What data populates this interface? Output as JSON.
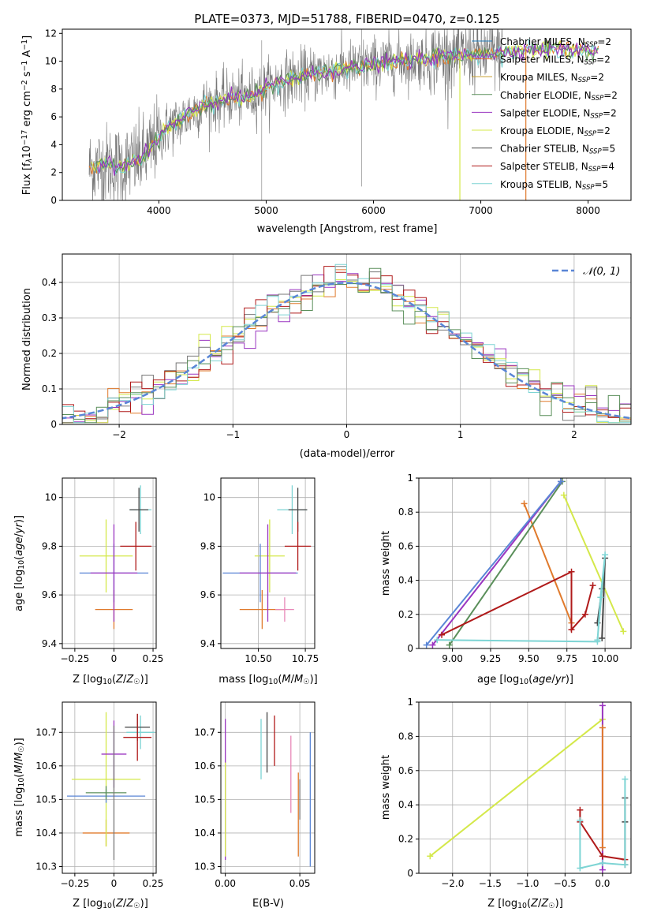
{
  "title": "PLATE=0373, MJD=51788, FIBERID=0470, z=0.125",
  "colors": {
    "orange": "#e07a2c",
    "purple": "#9a35c0",
    "yellow": "#d4e84a",
    "gray": "#777777",
    "red": "#b01a1a",
    "cyan": "#7dd4d4",
    "blue": "#5a86d6",
    "green": "#5a8f5a",
    "pink": "#e888b8"
  },
  "chart_data": [
    {
      "id": "spectrum",
      "type": "line",
      "xlabel": "wavelength [Angstrom, rest frame]",
      "ylabel": "Flux [f_λ 10^-17 erg cm^-2 s^-1 A^-1]",
      "xlim": [
        3100,
        8400
      ],
      "ylim": [
        0,
        12.3
      ],
      "xticks": [
        4000,
        5000,
        6000,
        7000,
        8000
      ],
      "yticks": [
        0,
        2,
        4,
        6,
        8,
        10,
        12
      ],
      "grid": false,
      "legend_position": "right",
      "legend": [
        {
          "label": "Chabrier MILES, N",
          "sub": "SSP",
          "tail": "=2",
          "color": "#1f77b4"
        },
        {
          "label": "Salpeter MILES, N",
          "sub": "SSP",
          "tail": "=2",
          "color": "#e07a2c"
        },
        {
          "label": "Kroupa MILES, N",
          "sub": "SSP",
          "tail": "=2",
          "color": "#c8a030"
        },
        {
          "label": "Chabrier ELODIE, N",
          "sub": "SSP",
          "tail": "=2",
          "color": "#5a8f5a"
        },
        {
          "label": "Salpeter ELODIE, N",
          "sub": "SSP",
          "tail": "=2",
          "color": "#9a35c0"
        },
        {
          "label": "Kroupa ELODIE, N",
          "sub": "SSP",
          "tail": "=2",
          "color": "#d4e84a"
        },
        {
          "label": "Chabrier STELIB, N",
          "sub": "SSP",
          "tail": "=5",
          "color": "#444444"
        },
        {
          "label": "Salpeter STELIB, N",
          "sub": "SSP",
          "tail": "=4",
          "color": "#b01a1a"
        },
        {
          "label": "Kroupa STELIB, N",
          "sub": "SSP",
          "tail": "=5",
          "color": "#7dd4d4"
        }
      ],
      "model_curve": {
        "x": [
          3350,
          3500,
          3650,
          3800,
          3900,
          4000,
          4100,
          4200,
          4300,
          4400,
          4500,
          4600,
          4700,
          4800,
          4900,
          5000,
          5200,
          5400,
          5600,
          5800,
          6000,
          6200,
          6400,
          6600,
          6800,
          7000,
          7200,
          7400,
          7600,
          7800,
          8000,
          8100
        ],
        "y": [
          2.3,
          2.6,
          2.4,
          2.9,
          3.4,
          4.6,
          5.3,
          5.7,
          6.3,
          6.8,
          7.0,
          7.2,
          7.4,
          7.4,
          7.6,
          8.1,
          8.7,
          9.0,
          9.3,
          9.5,
          9.8,
          10.0,
          10.1,
          10.3,
          10.4,
          10.5,
          10.6,
          10.9,
          10.8,
          10.9,
          10.7,
          10.8
        ]
      }
    },
    {
      "id": "residuals",
      "type": "step",
      "xlabel": "(data-model)/error",
      "ylabel": "Normed distribution",
      "xlim": [
        -2.5,
        2.5
      ],
      "ylim": [
        0,
        0.48
      ],
      "xticks": [
        -2,
        -1,
        0,
        1,
        2
      ],
      "yticks": [
        0.0,
        0.1,
        0.2,
        0.3,
        0.4
      ],
      "grid": true,
      "legend_label": "𝒩(0, 1)",
      "legend_position": "top-right",
      "bin_width": 0.1
    },
    {
      "id": "age_vs_Z",
      "type": "errorbar",
      "xlabel": "Z [log10(Z/Z☉)]",
      "ylabel": "age  [log10(age/yr)]",
      "xlim": [
        -0.33,
        0.27
      ],
      "ylim": [
        9.38,
        10.08
      ],
      "xticks": [
        -0.25,
        0.0,
        0.25
      ],
      "yticks": [
        9.4,
        9.6,
        9.8,
        10.0
      ],
      "grid": true,
      "points": [
        {
          "x": 0.0,
          "xerr": 0.12,
          "y": 9.54,
          "yerr": 0.08,
          "color": "#e07a2c"
        },
        {
          "x": -0.05,
          "xerr": 0.17,
          "y": 9.76,
          "yerr": 0.15,
          "color": "#d4e84a"
        },
        {
          "x": 0.0,
          "xerr": 0.22,
          "y": 9.69,
          "yerr": 0.12,
          "color": "#5a86d6"
        },
        {
          "x": 0.0,
          "xerr": 0.15,
          "y": 9.69,
          "yerr": 0.2,
          "color": "#9a35c0"
        },
        {
          "x": 0.17,
          "xerr": 0.07,
          "y": 9.95,
          "yerr": 0.1,
          "color": "#7dd4d4"
        },
        {
          "x": 0.16,
          "xerr": 0.06,
          "y": 9.95,
          "yerr": 0.09,
          "color": "#444444"
        },
        {
          "x": 0.14,
          "xerr": 0.1,
          "y": 9.8,
          "yerr": 0.1,
          "color": "#b01a1a"
        }
      ]
    },
    {
      "id": "age_vs_mass",
      "type": "errorbar",
      "xlabel": "mass [log10(M/M☉)]",
      "xlim": [
        10.3,
        10.8
      ],
      "ylim": [
        9.38,
        10.08
      ],
      "xticks": [
        10.5,
        10.75
      ],
      "xtick_labels": [
        "10.50",
        "10.75"
      ],
      "yticks": [
        9.4,
        9.6,
        9.8,
        10.0
      ],
      "grid": true,
      "points": [
        {
          "x": 10.52,
          "xerr": 0.12,
          "y": 9.54,
          "yerr": 0.08,
          "color": "#e07a2c"
        },
        {
          "x": 10.56,
          "xerr": 0.08,
          "y": 9.76,
          "yerr": 0.15,
          "color": "#d4e84a"
        },
        {
          "x": 10.51,
          "xerr": 0.2,
          "y": 9.69,
          "yerr": 0.12,
          "color": "#5a86d6"
        },
        {
          "x": 10.55,
          "xerr": 0.15,
          "y": 9.69,
          "yerr": 0.2,
          "color": "#9a35c0"
        },
        {
          "x": 10.68,
          "xerr": 0.08,
          "y": 9.95,
          "yerr": 0.1,
          "color": "#7dd4d4"
        },
        {
          "x": 10.71,
          "xerr": 0.05,
          "y": 9.95,
          "yerr": 0.09,
          "color": "#444444"
        },
        {
          "x": 10.71,
          "xerr": 0.07,
          "y": 9.8,
          "yerr": 0.1,
          "color": "#b01a1a"
        },
        {
          "x": 10.64,
          "xerr": 0.05,
          "y": 9.54,
          "yerr": 0.05,
          "color": "#e888b8"
        }
      ]
    },
    {
      "id": "weight_vs_age",
      "type": "line",
      "xlabel": "age  [log10(age/yr)]",
      "ylabel": "mass weight",
      "xlim": [
        8.78,
        10.17
      ],
      "ylim": [
        0,
        1.0
      ],
      "xticks": [
        9.0,
        9.25,
        9.5,
        9.75,
        10.0
      ],
      "xtick_labels": [
        "9.00",
        "9.25",
        "9.50",
        "9.75",
        "10.00"
      ],
      "yticks": [
        0.0,
        0.2,
        0.4,
        0.6,
        0.8,
        1.0
      ],
      "grid": true,
      "series": [
        {
          "color": "#e07a2c",
          "x": [
            9.47,
            9.78
          ],
          "y": [
            0.85,
            0.15
          ]
        },
        {
          "color": "#5a8f5a",
          "x": [
            8.98,
            9.72
          ],
          "y": [
            0.02,
            0.98
          ]
        },
        {
          "color": "#9a35c0",
          "x": [
            8.87,
            9.71
          ],
          "y": [
            0.02,
            0.98
          ]
        },
        {
          "color": "#5a86d6",
          "x": [
            8.83,
            9.71
          ],
          "y": [
            0.02,
            0.98
          ]
        },
        {
          "color": "#d4e84a",
          "x": [
            9.73,
            10.12
          ],
          "y": [
            0.9,
            0.1
          ]
        },
        {
          "color": "#b01a1a",
          "x": [
            8.93,
            9.78,
            9.78,
            9.87,
            9.92
          ],
          "y": [
            0.08,
            0.45,
            0.11,
            0.2,
            0.37
          ]
        },
        {
          "color": "#444444",
          "x": [
            9.95,
            9.98,
            10.0,
            9.98
          ],
          "y": [
            0.15,
            0.35,
            0.53,
            0.06
          ]
        },
        {
          "color": "#7dd4d4",
          "x": [
            8.9,
            9.95,
            9.97,
            10.0,
            9.95
          ],
          "y": [
            0.05,
            0.04,
            0.3,
            0.55,
            0.05
          ]
        }
      ]
    },
    {
      "id": "mass_vs_Z",
      "type": "errorbar",
      "xlabel": "Z [log10(Z/Z☉)]",
      "ylabel": "mass [log10(M/M☉)]",
      "xlim": [
        -0.33,
        0.27
      ],
      "ylim": [
        10.28,
        10.79
      ],
      "xticks": [
        -0.25,
        0.0,
        0.25
      ],
      "yticks": [
        10.3,
        10.4,
        10.5,
        10.6,
        10.7
      ],
      "grid": true,
      "points": [
        {
          "x": -0.05,
          "xerr": 0.15,
          "y": 10.4,
          "yerr": 0.04,
          "color": "#e07a2c"
        },
        {
          "x": -0.05,
          "xerr": 0.22,
          "y": 10.56,
          "yerr": 0.2,
          "color": "#d4e84a"
        },
        {
          "x": -0.05,
          "xerr": 0.25,
          "y": 10.51,
          "yerr": 0.02,
          "color": "#5a86d6"
        },
        {
          "x": -0.05,
          "xerr": 0.13,
          "y": 10.52,
          "yerr": 0.02,
          "color": "#5a8f5a"
        },
        {
          "x": 0.0,
          "xerr": 0.08,
          "y": 10.635,
          "yerr": 0.1,
          "color": "#9a35c0"
        },
        {
          "x": 0.17,
          "xerr": 0.09,
          "y": 10.7,
          "yerr": 0.05,
          "color": "#7dd4d4"
        },
        {
          "x": 0.15,
          "xerr": 0.08,
          "y": 10.715,
          "yerr": 0.04,
          "color": "#444444"
        },
        {
          "x": 0.15,
          "xerr": 0.09,
          "y": 10.685,
          "yerr": 0.07,
          "color": "#b01a1a"
        },
        {
          "x": 0.0,
          "xerr": 0.0,
          "y": 10.52,
          "yerr": 0.2,
          "color": "#777777"
        }
      ]
    },
    {
      "id": "mass_vs_ebv",
      "type": "errorbar",
      "xlabel": "E(B-V)",
      "xlim": [
        -0.003,
        0.06
      ],
      "ylim": [
        10.28,
        10.79
      ],
      "xticks": [
        0.0,
        0.05
      ],
      "xtick_labels": [
        "0.00",
        "0.05"
      ],
      "yticks": [
        10.3,
        10.4,
        10.5,
        10.6,
        10.7
      ],
      "grid": true,
      "points": [
        {
          "x": 0.0,
          "y": 10.53,
          "yerr": 0.21,
          "color": "#9a35c0"
        },
        {
          "x": 0.0,
          "y": 10.47,
          "yerr": 0.14,
          "color": "#d4e84a"
        },
        {
          "x": 0.024,
          "y": 10.65,
          "yerr": 0.09,
          "color": "#7dd4d4"
        },
        {
          "x": 0.028,
          "y": 10.67,
          "yerr": 0.09,
          "color": "#444444"
        },
        {
          "x": 0.033,
          "y": 10.675,
          "yerr": 0.075,
          "color": "#b01a1a"
        },
        {
          "x": 0.044,
          "y": 10.575,
          "yerr": 0.115,
          "color": "#e888b8"
        },
        {
          "x": 0.049,
          "y": 10.455,
          "yerr": 0.125,
          "color": "#e07a2c"
        },
        {
          "x": 0.05,
          "y": 10.5,
          "yerr": 0.06,
          "color": "#777777"
        },
        {
          "x": 0.057,
          "y": 10.5,
          "yerr": 0.2,
          "color": "#5a86d6"
        }
      ]
    },
    {
      "id": "weight_vs_Z",
      "type": "line",
      "xlabel": "Z [log10(Z/Z☉)]",
      "ylabel": "mass weight",
      "xlim": [
        -2.45,
        0.38
      ],
      "ylim": [
        0,
        1.0
      ],
      "xticks": [
        -2.0,
        -1.5,
        -1.0,
        -0.5,
        0.0
      ],
      "xtick_labels": [
        "−2.0",
        "−1.5",
        "−1.0",
        "−0.5",
        "0.0"
      ],
      "yticks": [
        0.0,
        0.2,
        0.4,
        0.6,
        0.8,
        1.0
      ],
      "grid": true,
      "series": [
        {
          "color": "#d4e84a",
          "x": [
            -2.3,
            0.0
          ],
          "y": [
            0.1,
            0.9
          ]
        },
        {
          "color": "#9a35c0",
          "x": [
            0.0,
            0.0
          ],
          "y": [
            0.02,
            0.98
          ]
        },
        {
          "color": "#e07a2c",
          "x": [
            0.0,
            0.0
          ],
          "y": [
            0.15,
            0.85
          ]
        },
        {
          "color": "#b01a1a",
          "x": [
            -0.3,
            -0.3,
            0.0,
            0.3
          ],
          "y": [
            0.37,
            0.3,
            0.1,
            0.08
          ]
        },
        {
          "color": "#444444",
          "x": [
            0.3,
            0.3,
            0.3
          ],
          "y": [
            0.05,
            0.3,
            0.44
          ]
        },
        {
          "color": "#7dd4d4",
          "x": [
            -0.3,
            -0.3,
            0.0,
            0.3,
            0.3
          ],
          "y": [
            0.31,
            0.03,
            0.06,
            0.05,
            0.55
          ]
        }
      ]
    }
  ]
}
